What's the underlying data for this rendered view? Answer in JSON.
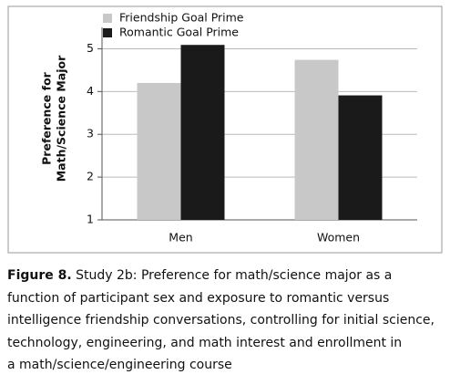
{
  "chart_data": {
    "type": "bar",
    "ylabel": [
      "Preference for",
      "Math/Science Major"
    ],
    "categories": [
      "Men",
      "Women"
    ],
    "series": [
      {
        "name": "Friendship Goal Prime",
        "color": "#c8c8c8",
        "values": [
          4.2,
          4.74
        ]
      },
      {
        "name": "Romantic Goal Prime",
        "color": "#1a1a1a",
        "values": [
          5.09,
          3.91
        ]
      }
    ],
    "ylim": [
      1,
      5.5
    ],
    "yticks": [
      1,
      2,
      3,
      4,
      5
    ],
    "grid": true
  },
  "caption": {
    "label": "Figure 8.",
    "lines": [
      "Study 2b: Preference for math/science major as a",
      "function of participant sex and exposure to romantic versus",
      "intelligence friendship conversations, controlling for initial science,",
      "technology, engineering, and math interest and enrollment in",
      "a math/science/engineering course"
    ]
  }
}
